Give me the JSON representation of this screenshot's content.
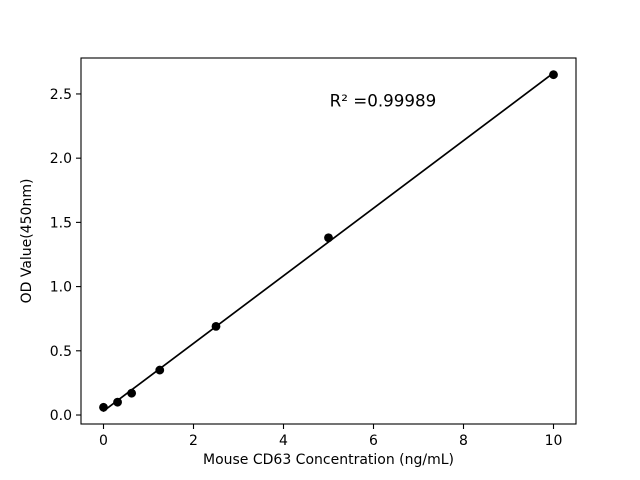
{
  "figure": {
    "background": "#ffffff"
  },
  "chart_data": {
    "type": "scatter",
    "title": "",
    "xlabel": "Mouse CD63 Concentration (ng/mL)",
    "ylabel": "OD Value(450nm)",
    "x": [
      0,
      0.3125,
      0.625,
      1.25,
      2.5,
      5,
      10
    ],
    "y": [
      0.06,
      0.1,
      0.17,
      0.35,
      0.69,
      1.38,
      2.65
    ],
    "fit_line": {
      "type": "linear_regression",
      "drawn_across_data_range": true
    },
    "annotation": {
      "text": "R² =0.99989",
      "x": 6.21,
      "y": 2.45
    },
    "xlim": [
      -0.5,
      10.5
    ],
    "ylim": [
      -0.07,
      2.78
    ],
    "xticks": [
      0,
      2,
      4,
      6,
      8,
      10
    ],
    "xtick_labels": [
      "0",
      "2",
      "4",
      "6",
      "8",
      "10"
    ],
    "yticks": [
      0,
      0.5,
      1.0,
      1.5,
      2.0,
      2.5
    ],
    "ytick_labels": [
      "0.0",
      "0.5",
      "1.0",
      "1.5",
      "2.0",
      "2.5"
    ],
    "grid": false,
    "legend": "none",
    "marker_color": "#000000",
    "line_color": "#000000",
    "axis_color": "#000000",
    "text_color": "#000000"
  }
}
